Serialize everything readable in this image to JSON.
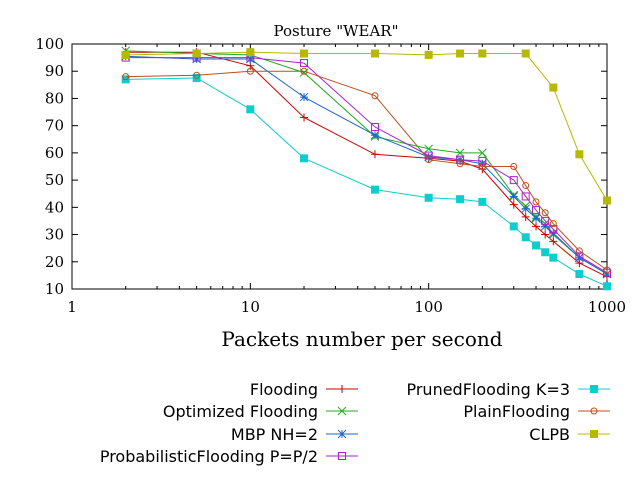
{
  "chart_data": {
    "type": "line",
    "title": "Posture \"WEAR\"",
    "xlabel": "Packets number per second",
    "ylabel": "",
    "xscale": "log",
    "xlim": [
      1,
      1000
    ],
    "ylim": [
      10,
      100
    ],
    "x_ticks": [
      1,
      10,
      100,
      1000
    ],
    "y_ticks": [
      10,
      20,
      30,
      40,
      50,
      60,
      70,
      80,
      90,
      100
    ],
    "legend_position": "bottom",
    "series": [
      {
        "name": "Flooding",
        "color": "#cc0000",
        "marker": "plus",
        "x": [
          2,
          5,
          10,
          20,
          50,
          100,
          150,
          200,
          300,
          350,
          400,
          450,
          500,
          700,
          1000
        ],
        "y": [
          97,
          97,
          92,
          73,
          59.5,
          58,
          57,
          54,
          41,
          36.5,
          33,
          30,
          27.5,
          19.5,
          14.5
        ]
      },
      {
        "name": "Optimized Flooding",
        "color": "#22aa22",
        "marker": "x",
        "x": [
          2,
          5,
          10,
          20,
          50,
          100,
          150,
          200,
          300,
          350,
          400,
          450,
          500,
          700,
          1000
        ],
        "y": [
          97.5,
          96.5,
          96,
          89.5,
          66,
          61.5,
          60,
          60,
          44.5,
          40.5,
          36.5,
          34,
          30,
          21.5,
          15.5
        ]
      },
      {
        "name": "MBP NH=2",
        "color": "#1e64c8",
        "marker": "star",
        "x": [
          2,
          5,
          10,
          20,
          50,
          100,
          150,
          200,
          300,
          350,
          400,
          450,
          500,
          700,
          1000
        ],
        "y": [
          95.5,
          94.5,
          94.5,
          80.5,
          66.5,
          58.5,
          57.5,
          56,
          44,
          39.5,
          36,
          33,
          30.5,
          21.5,
          15.5
        ]
      },
      {
        "name": "ProbabilisticFlooding P=P/2",
        "color": "#aa22cc",
        "marker": "square-open",
        "x": [
          2,
          5,
          10,
          20,
          50,
          100,
          150,
          200,
          300,
          350,
          400,
          450,
          500,
          700,
          1000
        ],
        "y": [
          95,
          95,
          95,
          93,
          69.5,
          59,
          57.5,
          57,
          50,
          44,
          39,
          35,
          32,
          22,
          16
        ]
      },
      {
        "name": "PrunedFlooding K=3",
        "color": "#11cccc",
        "marker": "square-filled",
        "x": [
          2,
          5,
          10,
          20,
          50,
          100,
          150,
          200,
          300,
          350,
          400,
          450,
          500,
          700,
          1000
        ],
        "y": [
          87,
          87.5,
          76,
          58,
          46.5,
          43.5,
          43,
          42,
          33,
          29,
          26,
          23.5,
          21.5,
          15.5,
          11
        ]
      },
      {
        "name": "PlainFlooding",
        "color": "#b85020",
        "marker": "circle-open",
        "x": [
          2,
          5,
          10,
          20,
          50,
          100,
          150,
          200,
          300,
          350,
          400,
          450,
          500,
          700,
          1000
        ],
        "y": [
          88,
          88.5,
          90,
          90,
          81,
          57.5,
          56,
          55,
          55,
          48,
          42,
          38,
          34,
          24,
          17
        ]
      },
      {
        "name": "CLPB",
        "color": "#b8b800",
        "marker": "square-filled",
        "x": [
          2,
          5,
          10,
          20,
          50,
          100,
          150,
          200,
          350,
          500,
          700,
          1000
        ],
        "y": [
          96,
          96.5,
          97,
          96.5,
          96.5,
          96,
          96.5,
          96.5,
          96.5,
          84,
          59.5,
          42.5
        ]
      }
    ]
  }
}
